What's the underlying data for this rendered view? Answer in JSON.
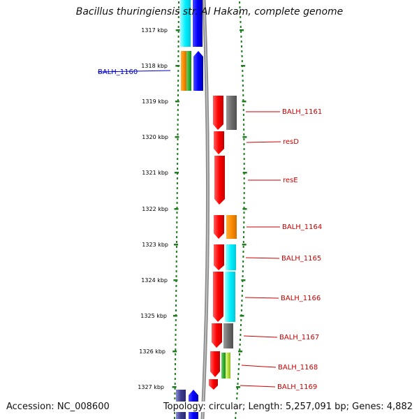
{
  "title": "Bacillus thuringiensis str. Al Hakam, complete genome",
  "accession": "Accession: NC_008600",
  "topology": "Topology: circular; Length: 5,257,091 bp; Genes: 4,882",
  "colors": {
    "backbone": "#8c8c8c",
    "scale_dots": "#1e7d1e",
    "label_forward": "#0000cc",
    "label_reverse": "#cc0000"
  },
  "kbp_ticks": [
    "1317 kbp",
    "1318 kbp",
    "1319 kbp",
    "1320 kbp",
    "1321 kbp",
    "1322 kbp",
    "1323 kbp",
    "1324 kbp",
    "1325 kbp",
    "1326 kbp",
    "1327 kbp"
  ],
  "gene_labels_left": [
    "BALH_1160"
  ],
  "gene_labels_right": [
    "BALH_1161",
    "resD",
    "resE",
    "BALH_1164",
    "BALH_1165",
    "BALH_1166",
    "BALH_1167",
    "BALH_1168",
    "BALH_1169"
  ],
  "feature_color_names": [
    "cyan",
    "blue",
    "orange",
    "green",
    "red",
    "gray",
    "lime",
    "navy"
  ]
}
